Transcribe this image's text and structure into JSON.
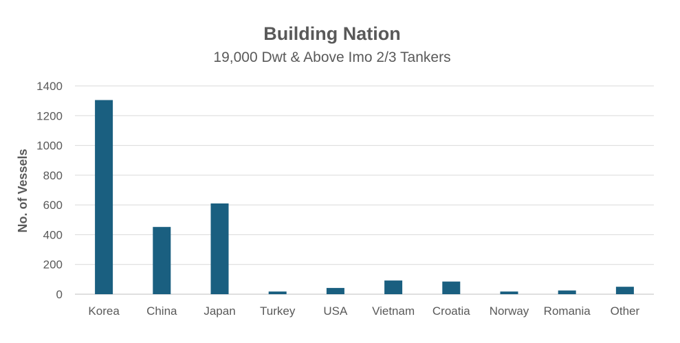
{
  "chart_data": {
    "type": "bar",
    "title": "Building Nation",
    "subtitle": "19,000 Dwt & Above Imo 2/3 Tankers",
    "xlabel": "",
    "ylabel": "No. of Vessels",
    "categories": [
      "Korea",
      "China",
      "Japan",
      "Turkey",
      "USA",
      "Vietnam",
      "Croatia",
      "Norway",
      "Romania",
      "Other"
    ],
    "values": [
      1305,
      452,
      610,
      18,
      42,
      92,
      85,
      18,
      25,
      50
    ],
    "ylim": [
      0,
      1400
    ],
    "yticks": [
      0,
      200,
      400,
      600,
      800,
      1000,
      1200,
      1400
    ],
    "grid": true,
    "legend": "none",
    "bar_color": "#1a5f80",
    "grid_color": "#d9d9d9",
    "text_color": "#595959"
  }
}
